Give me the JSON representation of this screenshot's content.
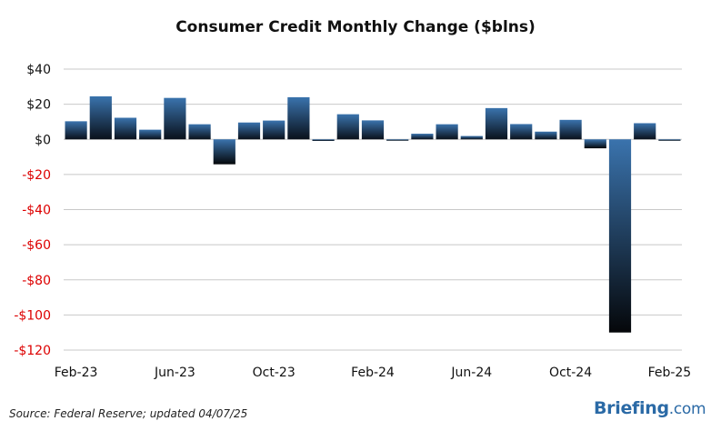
{
  "chart_data": {
    "type": "bar",
    "title": "Consumer Credit Monthly Change ($blns)",
    "xlabel": "",
    "ylabel": "",
    "ylim": [
      -120,
      40
    ],
    "ytick_values": [
      40,
      20,
      0,
      -20,
      -40,
      -60,
      -80,
      -100,
      -120
    ],
    "ytick_labels": [
      "$40",
      "$20",
      "$0",
      "-$20",
      "-$40",
      "-$60",
      "-$80",
      "-$100",
      "-$120"
    ],
    "xtick_labels": [
      "Feb-23",
      "Jun-23",
      "Oct-23",
      "Feb-24",
      "Jun-24",
      "Oct-24",
      "Feb-25"
    ],
    "categories": [
      "Feb-23",
      "Mar-23",
      "Apr-23",
      "May-23",
      "Jun-23",
      "Jul-23",
      "Aug-23",
      "Sep-23",
      "Oct-23",
      "Nov-23",
      "Dec-23",
      "Jan-24",
      "Feb-24",
      "Mar-24",
      "Apr-24",
      "May-24",
      "Jun-24",
      "Jul-24",
      "Aug-24",
      "Sep-24",
      "Oct-24",
      "Nov-24",
      "Dec-24",
      "Jan-25",
      "Feb-25"
    ],
    "values": [
      10.3,
      24.5,
      12.3,
      5.5,
      23.6,
      8.6,
      -14.2,
      9.6,
      10.7,
      24.0,
      -0.9,
      14.3,
      10.8,
      -0.5,
      3.2,
      8.6,
      1.9,
      17.8,
      8.7,
      4.4,
      11.1,
      -5.1,
      -110.0,
      9.2,
      -0.8
    ],
    "grid": true,
    "legend": "none",
    "colors": {
      "bar_top": "#3a73ad",
      "bar_bottom": "#06080c",
      "negative_label": "#dd0000",
      "positive_label": "#111111",
      "grid": "#c8c8c8"
    }
  },
  "footer": {
    "source": "Source: Federal Reserve; updated 04/07/25",
    "brand": "Briefing",
    "brand_suffix": ".com"
  }
}
